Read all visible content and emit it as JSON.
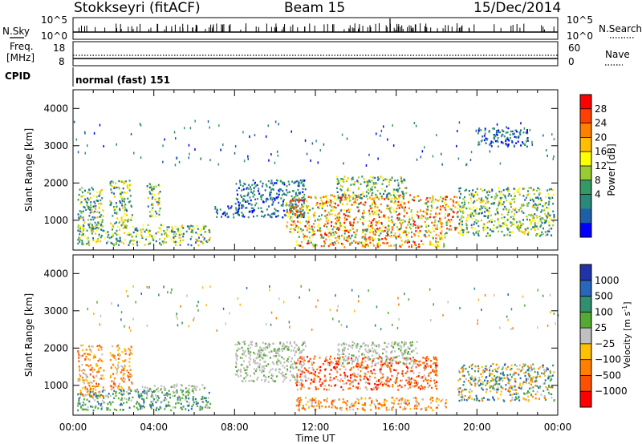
{
  "header": {
    "station": "Stokkseyri (fitACF)",
    "beam": "Beam 15",
    "date": "15/Dec/2014"
  },
  "top_panels": {
    "nsky_label": "N.Sky",
    "nsky_ticks": [
      "10^5",
      "10^0"
    ],
    "nsearch_label": "N.Search",
    "freq_label_1": "Freq.",
    "freq_label_2": "[MHz]",
    "freq_ticks": [
      "18",
      "8"
    ],
    "nave_label": "Nave",
    "nave_ticks": [
      "60",
      "0"
    ],
    "cpid_label": "CPID",
    "cpid_value": "normal (fast) 151"
  },
  "colorbars": {
    "power": {
      "label": "Power [dB]",
      "ticks": [
        "28",
        "24",
        "20",
        "16",
        "12",
        "8",
        "4"
      ],
      "colors": [
        "#ff0000",
        "#ff4000",
        "#ff8000",
        "#ffbf00",
        "#ffff00",
        "#99cc33",
        "#339966",
        "#2a8a7a",
        "#1f5fa8",
        "#0000ff"
      ]
    },
    "velocity": {
      "label_main": "Velocity [m s",
      "label_sup": "-1",
      "label_end": "]",
      "ticks": [
        "1000",
        "500",
        "100",
        "25",
        "−25",
        "−100",
        "−500",
        "−1000"
      ],
      "colors": [
        "#2233aa",
        "#2a66bb",
        "#2f8f6f",
        "#55aa33",
        "#c0c0c0",
        "#ffc000",
        "#ff8000",
        "#ff5000",
        "#ff0000"
      ]
    }
  },
  "chart_data": [
    {
      "type": "heatmap",
      "name_in_image": "power",
      "ylabel": "Slant Range [km]",
      "yticks": [
        "4000",
        "3000",
        "2000",
        "1000"
      ],
      "ylim": [
        200,
        4500
      ],
      "xlim": [
        0,
        24
      ],
      "regions": [
        {
          "t0": 0.2,
          "t1": 1.5,
          "r0": 700,
          "r1": 1900,
          "level": "mid"
        },
        {
          "t0": 1.8,
          "t1": 2.9,
          "r0": 900,
          "r1": 2100,
          "level": "mid"
        },
        {
          "t0": 3.6,
          "t1": 4.3,
          "r0": 1100,
          "r1": 2000,
          "level": "mid"
        },
        {
          "t0": 0.2,
          "t1": 6.8,
          "r0": 350,
          "r1": 900,
          "level": "mid"
        },
        {
          "t0": 7.0,
          "t1": 8.2,
          "r0": 1100,
          "r1": 1400,
          "level": "low"
        },
        {
          "t0": 8.0,
          "t1": 11.5,
          "r0": 1100,
          "r1": 2100,
          "level": "low"
        },
        {
          "t0": 10.5,
          "t1": 19.0,
          "r0": 700,
          "r1": 1700,
          "level": "high"
        },
        {
          "t0": 11.0,
          "t1": 18.5,
          "r0": 300,
          "r1": 700,
          "level": "high"
        },
        {
          "t0": 13.0,
          "t1": 16.5,
          "r0": 1600,
          "r1": 2200,
          "level": "mid"
        },
        {
          "t0": 19.0,
          "t1": 23.8,
          "r0": 600,
          "r1": 1900,
          "level": "mid"
        },
        {
          "t0": 20.0,
          "t1": 22.5,
          "r0": 3000,
          "r1": 3500,
          "level": "low"
        }
      ]
    },
    {
      "type": "heatmap",
      "name_in_image": "velocity",
      "ylabel": "Slant Range [km]",
      "xlabel": "Time UT",
      "xticks": [
        "00:00",
        "04:00",
        "08:00",
        "12:00",
        "16:00",
        "20:00",
        "00:00"
      ],
      "yticks": [
        "4000",
        "3000",
        "2000",
        "1000"
      ],
      "ylim": [
        200,
        4500
      ],
      "xlim": [
        0,
        24
      ],
      "regions": [
        {
          "t0": 0.2,
          "t1": 1.5,
          "r0": 700,
          "r1": 2100,
          "vel": "neg"
        },
        {
          "t0": 1.8,
          "t1": 2.9,
          "r0": 900,
          "r1": 2100,
          "vel": "neg"
        },
        {
          "t0": 0.2,
          "t1": 6.8,
          "r0": 350,
          "r1": 900,
          "vel": "pos"
        },
        {
          "t0": 3.0,
          "t1": 6.5,
          "r0": 850,
          "r1": 1050,
          "vel": "zero"
        },
        {
          "t0": 8.0,
          "t1": 11.5,
          "r0": 1100,
          "r1": 2200,
          "vel": "zero"
        },
        {
          "t0": 11.0,
          "t1": 18.0,
          "r0": 900,
          "r1": 1800,
          "vel": "neg_strong"
        },
        {
          "t0": 11.0,
          "t1": 18.5,
          "r0": 350,
          "r1": 700,
          "vel": "neg"
        },
        {
          "t0": 13.0,
          "t1": 17.0,
          "r0": 1600,
          "r1": 2200,
          "vel": "zero"
        },
        {
          "t0": 19.0,
          "t1": 23.8,
          "r0": 600,
          "r1": 1600,
          "vel": "mixed"
        }
      ]
    }
  ]
}
